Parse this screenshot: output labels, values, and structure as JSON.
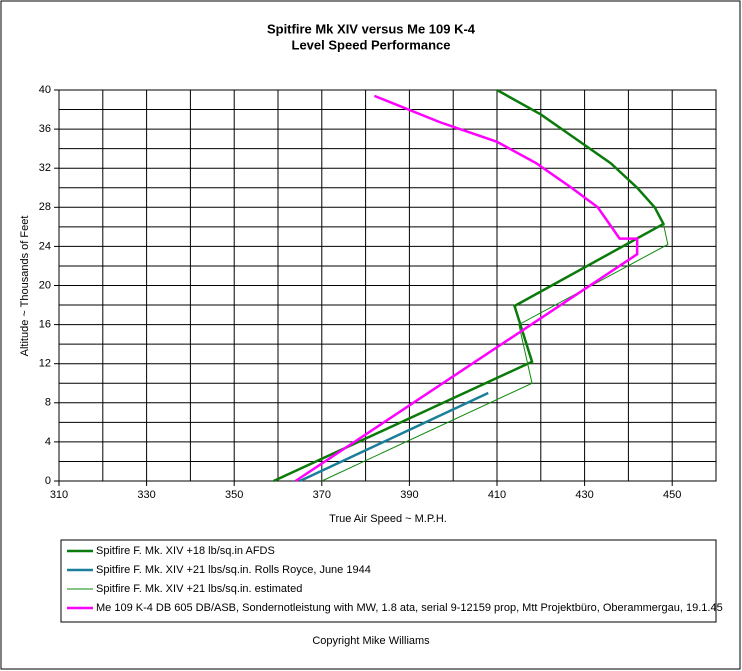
{
  "chart_data": {
    "type": "line",
    "title": "Spitfire Mk XIV versus Me 109 K-4",
    "subtitle": "Level Speed Performance",
    "x_label": "True Air Speed ~ M.P.H.",
    "y_label": "Altitude ~ Thousands of Feet",
    "footer": "Copyright Mike Williams",
    "xlim": [
      310,
      460
    ],
    "xticks": [
      310,
      330,
      350,
      370,
      390,
      410,
      430,
      450
    ],
    "ylim": [
      0,
      40
    ],
    "yticks": [
      0,
      4,
      8,
      12,
      16,
      20,
      24,
      28,
      32,
      36,
      40
    ],
    "grid": true,
    "series": [
      {
        "name": "Spitfire F. Mk. XIV +18 lb/sq.in AFDS",
        "color": "#0a7a0a",
        "linewidth": 2.5,
        "x": [
          359,
          418,
          414,
          448,
          446,
          442,
          436,
          428,
          420,
          410
        ],
        "values": [
          0,
          12.2,
          17.9,
          26.3,
          28,
          30,
          32.5,
          35,
          37.5,
          40
        ]
      },
      {
        "name": "Spitfire F. Mk. XIV +21 lbs/sq.in. Rolls Royce, June 1944",
        "color": "#1a7f9a",
        "linewidth": 2.5,
        "x": [
          365,
          408
        ],
        "values": [
          0,
          9
        ]
      },
      {
        "name": "Spitfire F. Mk. XIV +21 lbs/sq.in. estimated",
        "color": "#0a8a0a",
        "linewidth": 1,
        "x": [
          370,
          418,
          415,
          449,
          448
        ],
        "values": [
          0,
          10,
          16,
          24.2,
          26.3
        ]
      },
      {
        "name": "Me 109 K-4  DB 605 DB/ASB, Sondernotleistung with MW, 1.8 ata, serial 9-12159 prop, Mtt Projektbüro, Oberammergau, 19.1.45",
        "color": "#ff00ff",
        "linewidth": 2.5,
        "x": [
          364,
          442,
          442,
          438,
          433,
          427,
          419,
          410,
          397,
          382
        ],
        "values": [
          0,
          23.2,
          24.8,
          24.8,
          28,
          30,
          32.5,
          34.7,
          36.7,
          39.4
        ]
      }
    ]
  }
}
